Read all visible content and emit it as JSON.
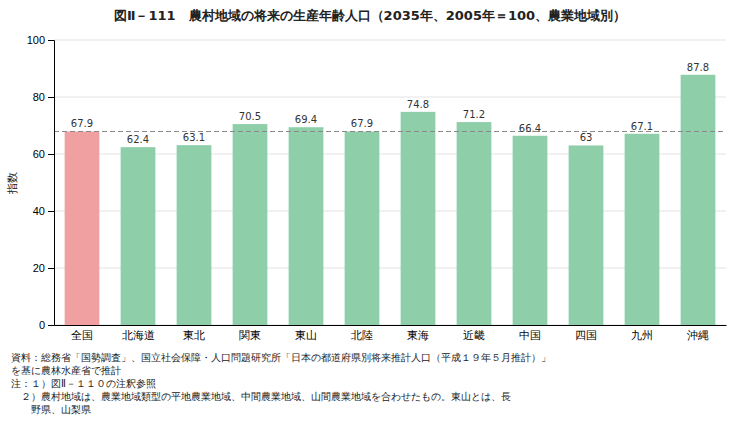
{
  "chart_data": {
    "type": "bar",
    "title": "図Ⅱ－111　農村地域の将来の生産年齢人口（2035年、2005年＝100、農業地域別）",
    "categories": [
      "全国",
      "北海道",
      "東北",
      "関東",
      "東山",
      "北陸",
      "東海",
      "近畿",
      "中国",
      "四国",
      "九州",
      "沖縄"
    ],
    "values": [
      67.9,
      62.4,
      63.1,
      70.5,
      69.4,
      67.9,
      74.8,
      71.2,
      66.4,
      63.0,
      67.1,
      87.8
    ],
    "colors": [
      "#f0a0a0",
      "#8ecfaa",
      "#8ecfaa",
      "#8ecfaa",
      "#8ecfaa",
      "#8ecfaa",
      "#8ecfaa",
      "#8ecfaa",
      "#8ecfaa",
      "#8ecfaa",
      "#8ecfaa",
      "#8ecfaa"
    ],
    "reference_line": 67.9,
    "ylabel": "指数",
    "ylim": [
      0,
      100
    ],
    "yticks": [
      0,
      20,
      40,
      60,
      80,
      100
    ],
    "grid": true,
    "data_labels": true,
    "annotations": [
      "資料：総務省「国勢調査」、国立社会保障・人口問題研究所「日本の都道府県別将来推計人口（平成１９年５月推計）」",
      "を基に農林水産省で推計",
      "注：１）図Ⅱ－１１０の注釈参照",
      "　２）農村地域は、農業地域類型の平地農業地域、中間農業地域、山間農業地域を合わせたもの。東山とは、長",
      "　　野県、山梨県"
    ]
  }
}
